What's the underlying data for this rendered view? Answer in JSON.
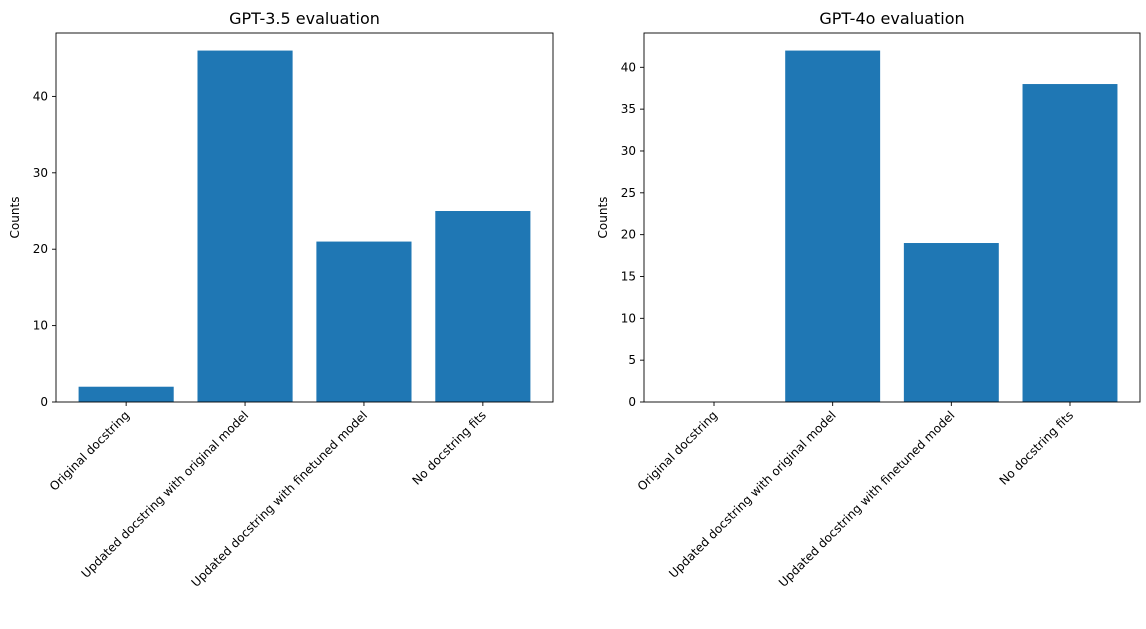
{
  "chart_data": [
    {
      "type": "bar",
      "title": "GPT-3.5 evaluation",
      "xlabel": "",
      "ylabel": "Counts",
      "categories": [
        "Original docstring",
        "Updated docstring with original model",
        "Updated docstring with finetuned model",
        "No docstring fits"
      ],
      "values": [
        2,
        46,
        21,
        25
      ],
      "ylim": [
        0,
        48.3
      ],
      "yticks": [
        0,
        10,
        20,
        30,
        40
      ],
      "color": "#1f77b4",
      "grid": false
    },
    {
      "type": "bar",
      "title": "GPT-4o evaluation",
      "xlabel": "",
      "ylabel": "Counts",
      "categories": [
        "Original docstring",
        "Updated docstring with original model",
        "Updated docstring with finetuned model",
        "No docstring fits"
      ],
      "values": [
        0,
        42,
        19,
        38
      ],
      "ylim": [
        0,
        44.1
      ],
      "yticks": [
        0,
        5,
        10,
        15,
        20,
        25,
        30,
        35,
        40
      ],
      "color": "#1f77b4",
      "grid": false
    }
  ]
}
